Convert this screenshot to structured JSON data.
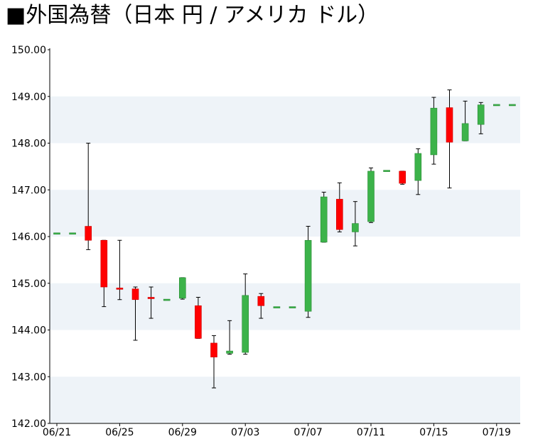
{
  "title": "■外国為替（日本 円 / アメリカ ドル）",
  "chart_data": {
    "type": "candlestick",
    "title": "■外国為替（日本 円 / アメリカ ドル）",
    "xlabel": "",
    "ylabel": "",
    "ylim": [
      142.0,
      150.0
    ],
    "y_ticks": [
      "142.00",
      "143.00",
      "144.00",
      "145.00",
      "146.00",
      "147.00",
      "148.00",
      "149.00",
      "150.00"
    ],
    "x_ticks": [
      {
        "day": 0,
        "label": "06/21"
      },
      {
        "day": 4,
        "label": "06/25"
      },
      {
        "day": 8,
        "label": "06/29"
      },
      {
        "day": 12,
        "label": "07/03"
      },
      {
        "day": 16,
        "label": "07/07"
      },
      {
        "day": 20,
        "label": "07/11"
      },
      {
        "day": 24,
        "label": "07/15"
      },
      {
        "day": 28,
        "label": "07/19"
      }
    ],
    "grid": "alternating horizontal bands",
    "colors": {
      "up": "#3cb34a",
      "down": "#ff0000",
      "band": "#eef3f8",
      "wick": "#000000"
    },
    "candles": [
      {
        "date": "06/21",
        "open": 146.08,
        "high": 146.08,
        "low": 146.08,
        "close": 146.08
      },
      {
        "date": "06/22",
        "open": 146.08,
        "high": 146.08,
        "low": 146.08,
        "close": 146.08
      },
      {
        "date": "06/23",
        "open": 146.22,
        "high": 148.0,
        "low": 145.72,
        "close": 145.92
      },
      {
        "date": "06/24",
        "open": 145.92,
        "high": 145.92,
        "low": 144.5,
        "close": 144.92
      },
      {
        "date": "06/25",
        "open": 144.9,
        "high": 145.92,
        "low": 144.65,
        "close": 144.88
      },
      {
        "date": "06/26",
        "open": 144.88,
        "high": 144.92,
        "low": 143.78,
        "close": 144.65
      },
      {
        "date": "06/27",
        "open": 144.7,
        "high": 144.92,
        "low": 144.25,
        "close": 144.68
      },
      {
        "date": "06/28",
        "open": 144.66,
        "high": 144.66,
        "low": 144.66,
        "close": 144.66
      },
      {
        "date": "06/29",
        "open": 144.68,
        "high": 145.12,
        "low": 144.66,
        "close": 145.12
      },
      {
        "date": "06/30",
        "open": 144.52,
        "high": 144.7,
        "low": 143.82,
        "close": 143.82
      },
      {
        "date": "07/01",
        "open": 143.72,
        "high": 143.88,
        "low": 142.76,
        "close": 143.42
      },
      {
        "date": "07/02",
        "open": 143.5,
        "high": 144.2,
        "low": 143.48,
        "close": 143.55
      },
      {
        "date": "07/03",
        "open": 143.52,
        "high": 145.2,
        "low": 143.48,
        "close": 144.74
      },
      {
        "date": "07/04",
        "open": 144.72,
        "high": 144.78,
        "low": 144.25,
        "close": 144.52
      },
      {
        "date": "07/05",
        "open": 144.5,
        "high": 144.5,
        "low": 144.5,
        "close": 144.5
      },
      {
        "date": "07/06",
        "open": 144.5,
        "high": 144.5,
        "low": 144.5,
        "close": 144.5
      },
      {
        "date": "07/07",
        "open": 144.4,
        "high": 146.22,
        "low": 144.27,
        "close": 145.92
      },
      {
        "date": "07/08",
        "open": 145.88,
        "high": 146.95,
        "low": 145.88,
        "close": 146.85
      },
      {
        "date": "07/09",
        "open": 146.8,
        "high": 147.15,
        "low": 146.1,
        "close": 146.15
      },
      {
        "date": "07/10",
        "open": 146.1,
        "high": 146.75,
        "low": 145.8,
        "close": 146.28
      },
      {
        "date": "07/11",
        "open": 146.32,
        "high": 147.47,
        "low": 146.3,
        "close": 147.4
      },
      {
        "date": "07/12",
        "open": 147.4,
        "high": 147.42,
        "low": 147.4,
        "close": 147.42
      },
      {
        "date": "07/13",
        "open": 147.4,
        "high": 147.4,
        "low": 147.12,
        "close": 147.14
      },
      {
        "date": "07/14",
        "open": 147.2,
        "high": 147.88,
        "low": 146.9,
        "close": 147.78
      },
      {
        "date": "07/15",
        "open": 147.75,
        "high": 148.98,
        "low": 147.55,
        "close": 148.75
      },
      {
        "date": "07/16",
        "open": 148.76,
        "high": 149.14,
        "low": 147.04,
        "close": 148.02
      },
      {
        "date": "07/17",
        "open": 148.05,
        "high": 148.9,
        "low": 148.05,
        "close": 148.42
      },
      {
        "date": "07/18",
        "open": 148.4,
        "high": 148.87,
        "low": 148.2,
        "close": 148.82
      },
      {
        "date": "07/19",
        "open": 148.83,
        "high": 148.83,
        "low": 148.83,
        "close": 148.83
      },
      {
        "date": "07/20",
        "open": 148.83,
        "high": 148.83,
        "low": 148.83,
        "close": 148.83
      }
    ]
  }
}
